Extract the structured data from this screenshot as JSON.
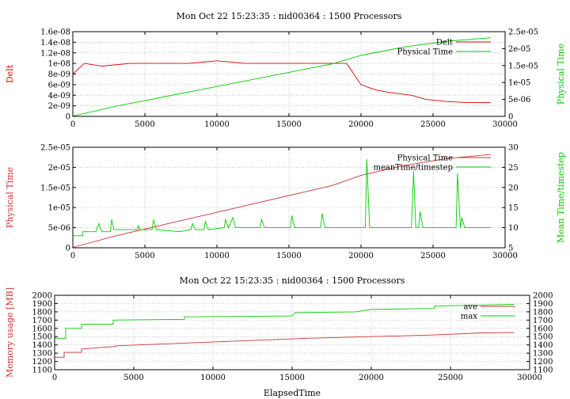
{
  "chart_data": [
    {
      "type": "line",
      "title": "Mon Oct 22 15:23:35 : nid00364 : 1500 Processors",
      "xlabel": "",
      "ylabel": "Delt",
      "y2label": "Physical Time",
      "xlim": [
        0,
        30000
      ],
      "ylim": [
        0,
        1.6e-08
      ],
      "y2lim": [
        0,
        2.5e-05
      ],
      "xticks": [
        "0",
        "5000",
        "10000",
        "15000",
        "20000",
        "25000",
        "30000"
      ],
      "yticks": [
        "0",
        "2e-09",
        "4e-09",
        "6e-09",
        "8e-09",
        "1e-08",
        "1.2e-08",
        "1.4e-08",
        "1.6e-08"
      ],
      "y2ticks": [
        "0",
        "5e-06",
        "1e-05",
        "1.5e-05",
        "2e-05",
        "2.5e-05"
      ],
      "grid": true,
      "legend": "top-right",
      "series": [
        {
          "name": "Delt",
          "axis": "y",
          "color": "#dd0000",
          "points": [
            [
              0,
              8e-09
            ],
            [
              800,
              1e-08
            ],
            [
              2000,
              9.5e-09
            ],
            [
              4000,
              1e-08
            ],
            [
              6000,
              1e-08
            ],
            [
              8000,
              1e-08
            ],
            [
              10000,
              1.05e-08
            ],
            [
              12000,
              1e-08
            ],
            [
              14000,
              1e-08
            ],
            [
              16000,
              1e-08
            ],
            [
              18000,
              1e-08
            ],
            [
              19000,
              1e-08
            ],
            [
              19500,
              8e-09
            ],
            [
              20000,
              6e-09
            ],
            [
              21000,
              5e-09
            ],
            [
              22000,
              4.5e-09
            ],
            [
              23500,
              4e-09
            ],
            [
              24500,
              3.2e-09
            ],
            [
              26000,
              2.8e-09
            ],
            [
              27500,
              2.6e-09
            ],
            [
              29000,
              2.6e-09
            ]
          ]
        },
        {
          "name": "Physical Time",
          "axis": "y2",
          "color": "#00cc00",
          "points": [
            [
              0,
              1e-07
            ],
            [
              3000,
              3e-06
            ],
            [
              6000,
              5.5e-06
            ],
            [
              9000,
              8e-06
            ],
            [
              12000,
              1.05e-05
            ],
            [
              15000,
              1.3e-05
            ],
            [
              18000,
              1.55e-05
            ],
            [
              20000,
              1.8e-05
            ],
            [
              23000,
              2.05e-05
            ],
            [
              26000,
              2.22e-05
            ],
            [
              29000,
              2.32e-05
            ]
          ]
        }
      ]
    },
    {
      "type": "line",
      "title": "",
      "xlabel": "",
      "ylabel": "Physical Time",
      "y2label": "Mean Time/timestep",
      "xlim": [
        0,
        30000
      ],
      "ylim": [
        0,
        2.5e-05
      ],
      "y2lim": [
        5,
        30
      ],
      "xticks": [
        "0",
        "5000",
        "10000",
        "15000",
        "20000",
        "25000",
        "30000"
      ],
      "yticks": [
        "0",
        "5e-06",
        "1e-05",
        "1.5e-05",
        "2e-05",
        "2.5e-05"
      ],
      "y2ticks": [
        "5",
        "10",
        "15",
        "20",
        "25",
        "30"
      ],
      "grid": true,
      "legend": "top-right",
      "series": [
        {
          "name": "Physical Time",
          "axis": "y",
          "color": "#cc3333",
          "points": [
            [
              0,
              1e-07
            ],
            [
              3000,
              3e-06
            ],
            [
              6000,
              5.5e-06
            ],
            [
              9000,
              8e-06
            ],
            [
              12000,
              1.05e-05
            ],
            [
              15000,
              1.3e-05
            ],
            [
              18000,
              1.55e-05
            ],
            [
              20000,
              1.8e-05
            ],
            [
              23000,
              2.05e-05
            ],
            [
              26000,
              2.22e-05
            ],
            [
              29000,
              2.32e-05
            ]
          ]
        },
        {
          "name": "meanTime/timestep",
          "axis": "y2",
          "color": "#00cc00",
          "points": [
            [
              0,
              8.0
            ],
            [
              700,
              8.0
            ],
            [
              700,
              9.0
            ],
            [
              1600,
              9.0
            ],
            [
              1800,
              11.0
            ],
            [
              2000,
              9.0
            ],
            [
              2600,
              9.0
            ],
            [
              2700,
              12.0
            ],
            [
              2850,
              9.5
            ],
            [
              4500,
              9.5
            ],
            [
              4550,
              10.5
            ],
            [
              4650,
              9.5
            ],
            [
              5500,
              9.5
            ],
            [
              5600,
              12.0
            ],
            [
              5800,
              9.5
            ],
            [
              7400,
              9.0
            ],
            [
              8200,
              9.5
            ],
            [
              8300,
              11.0
            ],
            [
              8500,
              9.5
            ],
            [
              9100,
              9.5
            ],
            [
              9200,
              11.5
            ],
            [
              9400,
              9.5
            ],
            [
              10500,
              10.0
            ],
            [
              10600,
              12.0
            ],
            [
              10800,
              10.0
            ],
            [
              11100,
              12.5
            ],
            [
              11300,
              10.0
            ],
            [
              13000,
              10.0
            ],
            [
              13100,
              12.0
            ],
            [
              13300,
              10.0
            ],
            [
              15100,
              10.0
            ],
            [
              15200,
              13.0
            ],
            [
              15400,
              10.0
            ],
            [
              17200,
              10.0
            ],
            [
              17300,
              13.5
            ],
            [
              17500,
              10.0
            ],
            [
              19000,
              10.0
            ],
            [
              20300,
              10.0
            ],
            [
              20400,
              27.0
            ],
            [
              20600,
              10.0
            ],
            [
              23500,
              10.0
            ],
            [
              23650,
              24.0
            ],
            [
              23800,
              10.0
            ],
            [
              24000,
              10.0
            ],
            [
              24100,
              14.0
            ],
            [
              24300,
              10.0
            ],
            [
              26600,
              10.0
            ],
            [
              26700,
              23.5
            ],
            [
              26900,
              10.0
            ],
            [
              27000,
              12.5
            ],
            [
              27200,
              10.0
            ],
            [
              29000,
              10.0
            ]
          ]
        }
      ]
    },
    {
      "type": "line",
      "title": "Mon Oct 22 15:23:35 : nid00364 : 1500 Processors",
      "xlabel": "ElapsedTime",
      "ylabel": "Memory usage [MB]",
      "y2label": "",
      "xlim": [
        0,
        30000
      ],
      "ylim": [
        1100,
        2000
      ],
      "y2lim": [
        1100,
        2000
      ],
      "xticks": [
        "0",
        "5000",
        "10000",
        "15000",
        "20000",
        "25000",
        "30000"
      ],
      "yticks": [
        "1100",
        "1200",
        "1300",
        "1400",
        "1500",
        "1600",
        "1700",
        "1800",
        "1900",
        "2000"
      ],
      "y2ticks": [
        "1100",
        "1200",
        "1300",
        "1400",
        "1500",
        "1600",
        "1700",
        "1800",
        "1900",
        "2000"
      ],
      "grid": true,
      "legend": "top-right",
      "series": [
        {
          "name": "ave",
          "axis": "y",
          "color": "#cc3333",
          "points": [
            [
              0,
              1250
            ],
            [
              600,
              1250
            ],
            [
              600,
              1310
            ],
            [
              1700,
              1310
            ],
            [
              1700,
              1350
            ],
            [
              3700,
              1380
            ],
            [
              4000,
              1390
            ],
            [
              8000,
              1420
            ],
            [
              12000,
              1450
            ],
            [
              16000,
              1480
            ],
            [
              20000,
              1500
            ],
            [
              24000,
              1520
            ],
            [
              27000,
              1545
            ],
            [
              29000,
              1550
            ]
          ]
        },
        {
          "name": "max",
          "axis": "y",
          "color": "#00cc00",
          "points": [
            [
              0,
              1480
            ],
            [
              700,
              1480
            ],
            [
              700,
              1600
            ],
            [
              1700,
              1600
            ],
            [
              1700,
              1650
            ],
            [
              3700,
              1650
            ],
            [
              3700,
              1700
            ],
            [
              8200,
              1710
            ],
            [
              8200,
              1740
            ],
            [
              15000,
              1750
            ],
            [
              15200,
              1790
            ],
            [
              19000,
              1800
            ],
            [
              20000,
              1830
            ],
            [
              24000,
              1840
            ],
            [
              24000,
              1870
            ],
            [
              29000,
              1890
            ]
          ]
        }
      ]
    }
  ]
}
